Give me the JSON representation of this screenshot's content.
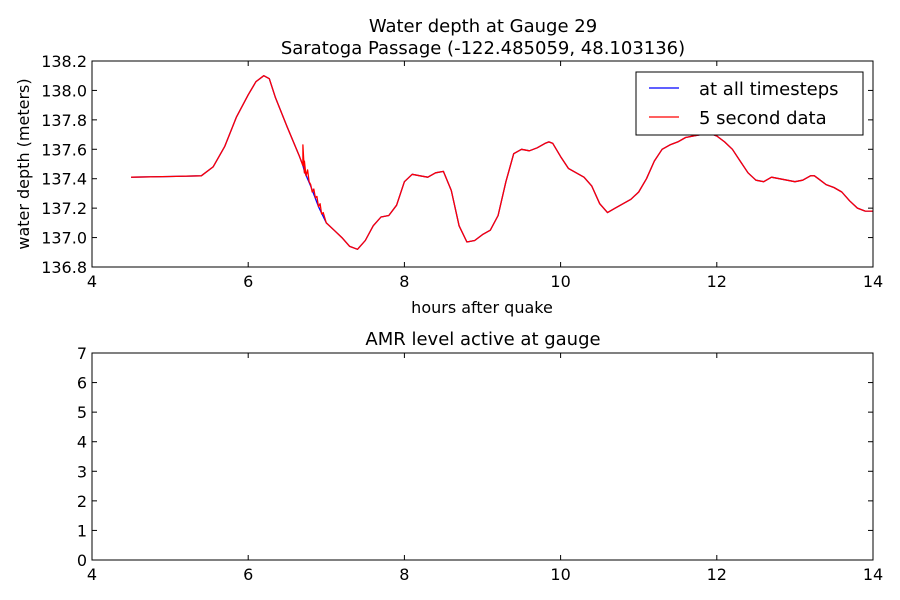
{
  "chart_data": [
    {
      "type": "line",
      "title_line1": "Water depth at Gauge 29",
      "title_line2": "Saratoga Passage  (-122.485059, 48.103136)",
      "xlabel": "hours after quake",
      "ylabel": "water depth (meters)",
      "xlim": [
        4,
        14
      ],
      "ylim": [
        136.8,
        138.2
      ],
      "xticks": [
        4,
        6,
        8,
        10,
        12,
        14
      ],
      "xtick_labels": [
        "4",
        "6",
        "8",
        "10",
        "12",
        "14"
      ],
      "yticks": [
        136.8,
        137.0,
        137.2,
        137.4,
        137.6,
        137.8,
        138.0,
        138.2
      ],
      "ytick_labels": [
        "136.8",
        "137.0",
        "137.2",
        "137.4",
        "137.6",
        "137.8",
        "138.0",
        "138.2"
      ],
      "grid": false,
      "legend_position": "top-right",
      "series": [
        {
          "name": "at all timesteps",
          "color": "#0000ff",
          "x": [
            4.5,
            5.0,
            5.4,
            5.55,
            5.7,
            5.85,
            6.0,
            6.1,
            6.2,
            6.27,
            6.35,
            6.5,
            6.65,
            6.7,
            6.72,
            6.8,
            6.9,
            7.0,
            7.1,
            7.2,
            7.3,
            7.4,
            7.5,
            7.6,
            7.7,
            7.8,
            7.9,
            8.0,
            8.1,
            8.2,
            8.3,
            8.4,
            8.5,
            8.6,
            8.7,
            8.8,
            8.9,
            9.0,
            9.1,
            9.2,
            9.3,
            9.4,
            9.5,
            9.6,
            9.7,
            9.8,
            9.85,
            9.9,
            10.0,
            10.1,
            10.2,
            10.3,
            10.4,
            10.5,
            10.6,
            10.7,
            10.8,
            10.9,
            11.0,
            11.1,
            11.2,
            11.3,
            11.4,
            11.5,
            11.6,
            11.7,
            11.8,
            11.9,
            12.0,
            12.1,
            12.2,
            12.3,
            12.4,
            12.5,
            12.6,
            12.7,
            12.8,
            12.9,
            13.0,
            13.1,
            13.2,
            13.25,
            13.3,
            13.4,
            13.5,
            13.6,
            13.7,
            13.8,
            13.9,
            14.0
          ],
          "y": [
            137.41,
            137.415,
            137.42,
            137.48,
            137.62,
            137.82,
            137.97,
            138.06,
            138.1,
            138.08,
            137.95,
            137.75,
            137.56,
            137.49,
            137.45,
            137.35,
            137.21,
            137.1,
            137.05,
            137.0,
            136.94,
            136.92,
            136.98,
            137.08,
            137.14,
            137.15,
            137.22,
            137.38,
            137.43,
            137.42,
            137.41,
            137.44,
            137.45,
            137.32,
            137.08,
            136.97,
            136.98,
            137.02,
            137.05,
            137.15,
            137.38,
            137.57,
            137.6,
            137.59,
            137.61,
            137.64,
            137.65,
            137.64,
            137.55,
            137.47,
            137.44,
            137.41,
            137.35,
            137.23,
            137.17,
            137.2,
            137.23,
            137.26,
            137.31,
            137.4,
            137.52,
            137.6,
            137.63,
            137.65,
            137.68,
            137.69,
            137.7,
            137.71,
            137.69,
            137.65,
            137.6,
            137.52,
            137.44,
            137.39,
            137.38,
            137.41,
            137.4,
            137.39,
            137.38,
            137.39,
            137.42,
            137.42,
            137.4,
            137.36,
            137.34,
            137.31,
            137.25,
            137.2,
            137.18,
            137.18
          ]
        },
        {
          "name": "5 second data",
          "color": "#ff0000",
          "x": [
            4.5,
            5.0,
            5.4,
            5.55,
            5.7,
            5.85,
            6.0,
            6.1,
            6.2,
            6.27,
            6.35,
            6.5,
            6.65,
            6.7,
            6.7,
            6.72,
            6.72,
            6.74,
            6.76,
            6.78,
            6.8,
            6.82,
            6.84,
            6.86,
            6.88,
            6.9,
            6.92,
            6.94,
            6.96,
            7.0,
            7.1,
            7.2,
            7.3,
            7.4,
            7.5,
            7.6,
            7.7,
            7.8,
            7.9,
            8.0,
            8.1,
            8.2,
            8.3,
            8.4,
            8.5,
            8.6,
            8.7,
            8.8,
            8.9,
            9.0,
            9.1,
            9.2,
            9.3,
            9.4,
            9.5,
            9.6,
            9.7,
            9.8,
            9.85,
            9.9,
            10.0,
            10.1,
            10.2,
            10.3,
            10.4,
            10.5,
            10.6,
            10.7,
            10.8,
            10.9,
            11.0,
            11.1,
            11.2,
            11.3,
            11.4,
            11.5,
            11.6,
            11.7,
            11.8,
            11.9,
            12.0,
            12.1,
            12.2,
            12.3,
            12.4,
            12.5,
            12.6,
            12.7,
            12.8,
            12.9,
            13.0,
            13.1,
            13.2,
            13.25,
            13.3,
            13.4,
            13.5,
            13.6,
            13.7,
            13.8,
            13.9,
            14.0
          ],
          "y": [
            137.41,
            137.415,
            137.42,
            137.48,
            137.62,
            137.82,
            137.97,
            138.06,
            138.1,
            138.08,
            137.95,
            137.75,
            137.56,
            137.49,
            137.63,
            137.44,
            137.52,
            137.42,
            137.46,
            137.38,
            137.36,
            137.31,
            137.33,
            137.27,
            137.28,
            137.21,
            137.23,
            137.16,
            137.17,
            137.1,
            137.05,
            137.0,
            136.94,
            136.92,
            136.98,
            137.08,
            137.14,
            137.15,
            137.22,
            137.38,
            137.43,
            137.42,
            137.41,
            137.44,
            137.45,
            137.32,
            137.08,
            136.97,
            136.98,
            137.02,
            137.05,
            137.15,
            137.38,
            137.57,
            137.6,
            137.59,
            137.61,
            137.64,
            137.65,
            137.64,
            137.55,
            137.47,
            137.44,
            137.41,
            137.35,
            137.23,
            137.17,
            137.2,
            137.23,
            137.26,
            137.31,
            137.4,
            137.52,
            137.6,
            137.63,
            137.65,
            137.68,
            137.69,
            137.7,
            137.71,
            137.69,
            137.65,
            137.6,
            137.52,
            137.44,
            137.39,
            137.38,
            137.41,
            137.4,
            137.39,
            137.38,
            137.39,
            137.42,
            137.42,
            137.4,
            137.36,
            137.34,
            137.31,
            137.25,
            137.2,
            137.18,
            137.18
          ]
        }
      ]
    },
    {
      "type": "line",
      "title": "AMR level active at gauge",
      "xlim": [
        4,
        14
      ],
      "ylim": [
        0,
        7
      ],
      "xticks": [
        4,
        6,
        8,
        10,
        12,
        14
      ],
      "xtick_labels": [
        "4",
        "6",
        "8",
        "10",
        "12",
        "14"
      ],
      "yticks": [
        0,
        1,
        2,
        3,
        4,
        5,
        6,
        7
      ],
      "ytick_labels": [
        "0",
        "1",
        "2",
        "3",
        "4",
        "5",
        "6",
        "7"
      ],
      "grid": false,
      "series": []
    }
  ]
}
